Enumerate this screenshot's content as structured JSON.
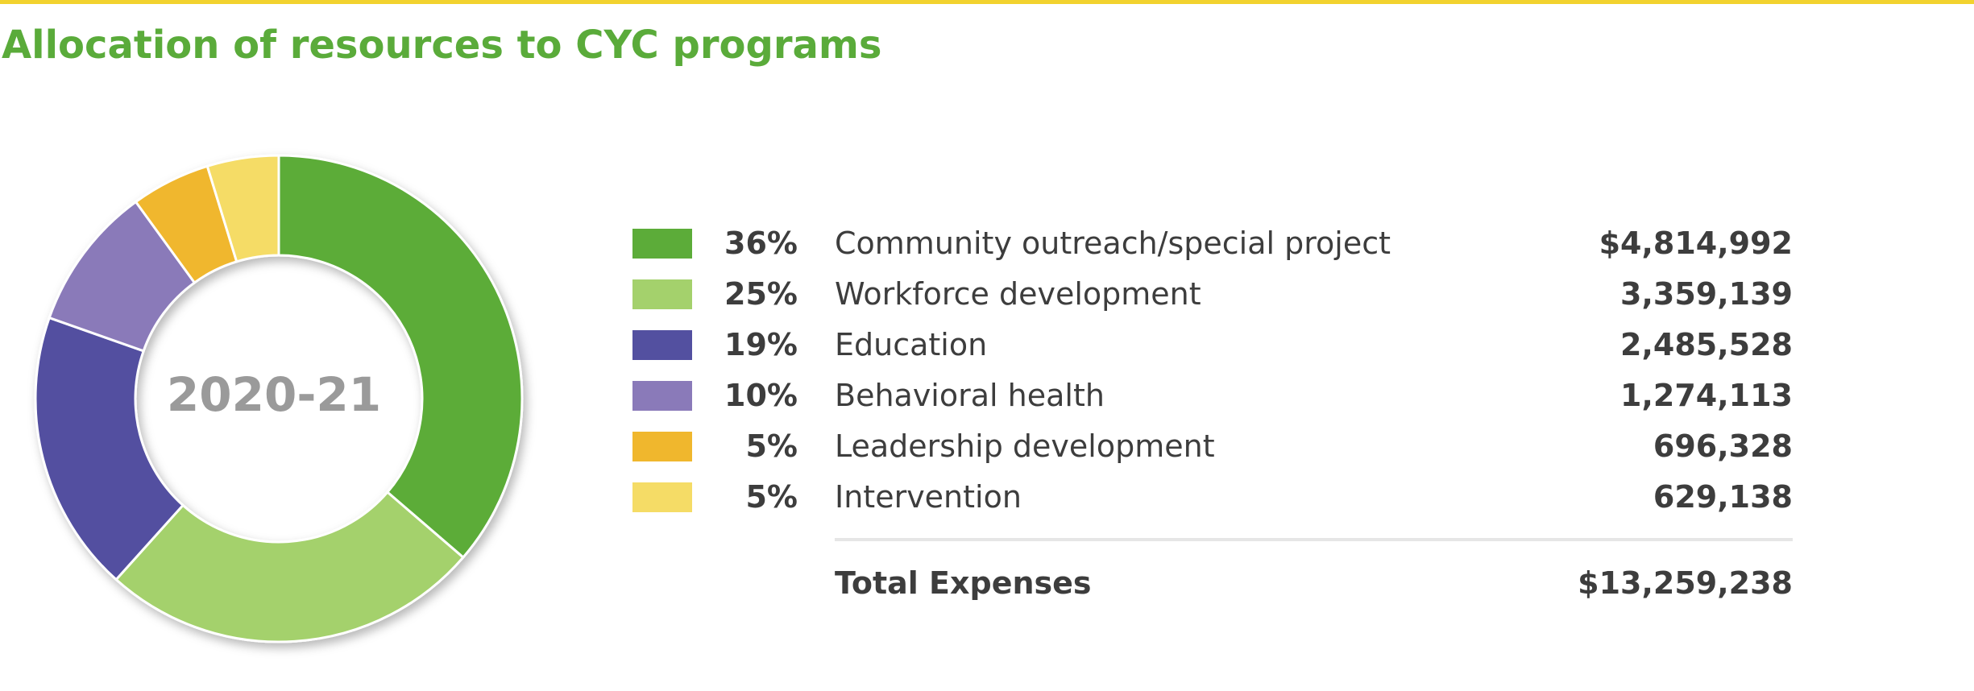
{
  "header": {
    "title": "Allocation of resources to CYC programs",
    "accent_color": "#f2d22e",
    "title_color": "#5aab3a"
  },
  "chart_data": {
    "type": "pie",
    "variant": "donut",
    "center_label": "2020-21",
    "unit": "$",
    "categories": [
      "Community outreach/special project",
      "Workforce development",
      "Education",
      "Behavioral health",
      "Leadership development",
      "Intervention"
    ],
    "percent_labels": [
      "36%",
      "25%",
      "19%",
      "10%",
      "5%",
      "5%"
    ],
    "amount_labels": [
      "$4,814,992",
      "3,359,139",
      "2,485,528",
      "1,274,113",
      "696,328",
      "629,138"
    ],
    "values": [
      4814992,
      3359139,
      2485528,
      1274113,
      696328,
      629138
    ],
    "colors": [
      "#5cac39",
      "#a4d16c",
      "#5350a0",
      "#8a7ab9",
      "#f0b72d",
      "#f5dc66"
    ],
    "total_label": "Total Expenses",
    "total_amount": "$13,259,238",
    "legend_position": "right"
  }
}
